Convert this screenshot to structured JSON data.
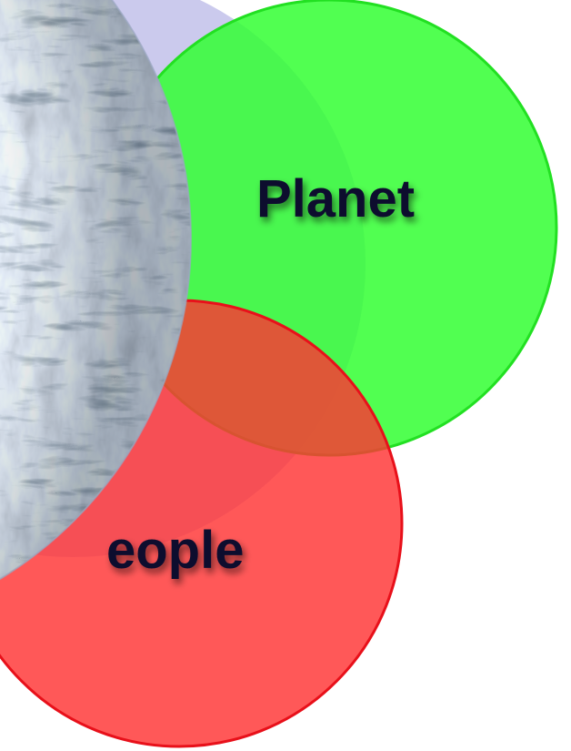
{
  "diagram": {
    "labels": {
      "planet": "Planet",
      "people": "eople"
    },
    "colors": {
      "blue_circle": "#8c8ad6",
      "green_circle": "#33ff33",
      "green_stroke": "#22e022",
      "red_circle": "#ff3333",
      "red_stroke": "#e8101a",
      "label_text": "#0b0b2e",
      "globe_base": "#8a9aaa"
    }
  }
}
